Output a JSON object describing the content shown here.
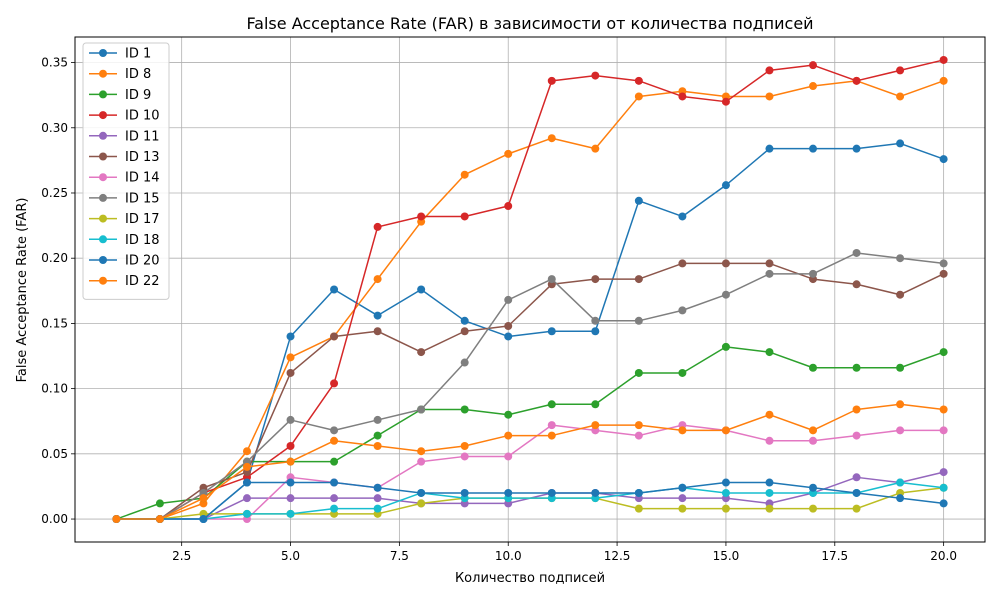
{
  "chart_data": {
    "type": "line",
    "title": "False Acceptance Rate (FAR) в зависимости от количества подписей",
    "xlabel": "Количество подписей",
    "ylabel": "False Acceptance Rate (FAR)",
    "xlim": [
      0.05,
      20.95
    ],
    "ylim": [
      -0.0176,
      0.3696
    ],
    "xticks": [
      2.5,
      5.0,
      7.5,
      10.0,
      12.5,
      15.0,
      17.5,
      20.0
    ],
    "xtick_labels": [
      "2.5",
      "5.0",
      "7.5",
      "10.0",
      "12.5",
      "15.0",
      "17.5",
      "20.0"
    ],
    "yticks": [
      0.0,
      0.05,
      0.1,
      0.15,
      0.2,
      0.25,
      0.3,
      0.35
    ],
    "ytick_labels": [
      "0.00",
      "0.05",
      "0.10",
      "0.15",
      "0.20",
      "0.25",
      "0.30",
      "0.35"
    ],
    "grid": true,
    "legend_position": "top-left",
    "x": [
      1,
      2,
      3,
      4,
      5,
      6,
      7,
      8,
      9,
      10,
      11,
      12,
      13,
      14,
      15,
      16,
      17,
      18,
      19,
      20
    ],
    "series": [
      {
        "name": "ID 1",
        "color": "#1f77b4",
        "values": [
          0,
          0,
          0,
          0.028,
          0.14,
          0.176,
          0.156,
          0.176,
          0.152,
          0.14,
          0.144,
          0.144,
          0.244,
          0.232,
          0.256,
          0.284,
          0.284,
          0.284,
          0.288,
          0.276
        ]
      },
      {
        "name": "ID 8",
        "color": "#ff7f0e",
        "values": [
          0,
          0,
          0.012,
          0.052,
          0.124,
          0.14,
          0.184,
          0.228,
          0.264,
          0.28,
          0.292,
          0.284,
          0.324,
          0.328,
          0.324,
          0.324,
          0.332,
          0.336,
          0.324,
          0.336
        ]
      },
      {
        "name": "ID 9",
        "color": "#2ca02c",
        "values": [
          0,
          0.012,
          0.016,
          0.044,
          0.044,
          0.044,
          0.064,
          0.084,
          0.084,
          0.08,
          0.088,
          0.088,
          0.112,
          0.112,
          0.132,
          0.128,
          0.116,
          0.116,
          0.116,
          0.128
        ]
      },
      {
        "name": "ID 10",
        "color": "#d62728",
        "values": [
          0,
          0,
          0.02,
          0.032,
          0.056,
          0.104,
          0.224,
          0.232,
          0.232,
          0.24,
          0.336,
          0.34,
          0.336,
          0.324,
          0.32,
          0.344,
          0.348,
          0.336,
          0.344,
          0.352
        ]
      },
      {
        "name": "ID 11",
        "color": "#9467bd",
        "values": [
          0,
          0,
          0,
          0.016,
          0.016,
          0.016,
          0.016,
          0.012,
          0.012,
          0.012,
          0.02,
          0.02,
          0.016,
          0.016,
          0.016,
          0.012,
          0.02,
          0.032,
          0.028,
          0.036
        ]
      },
      {
        "name": "ID 13",
        "color": "#8c564b",
        "values": [
          0,
          0,
          0.024,
          0.036,
          0.112,
          0.14,
          0.144,
          0.128,
          0.144,
          0.148,
          0.18,
          0.184,
          0.184,
          0.196,
          0.196,
          0.196,
          0.184,
          0.18,
          0.172,
          0.188
        ]
      },
      {
        "name": "ID 14",
        "color": "#e377c2",
        "values": [
          0,
          0,
          0,
          0,
          0.032,
          0.028,
          0.024,
          0.044,
          0.048,
          0.048,
          0.072,
          0.068,
          0.064,
          0.072,
          0.068,
          0.06,
          0.06,
          0.064,
          0.068,
          0.068
        ]
      },
      {
        "name": "ID 15",
        "color": "#7f7f7f",
        "values": [
          0,
          0,
          0.02,
          0.044,
          0.076,
          0.068,
          0.076,
          0.084,
          0.12,
          0.168,
          0.184,
          0.152,
          0.152,
          0.16,
          0.172,
          0.188,
          0.188,
          0.204,
          0.2,
          0.196
        ]
      },
      {
        "name": "ID 17",
        "color": "#bcbd22",
        "values": [
          0,
          0,
          0.004,
          0.004,
          0.004,
          0.004,
          0.004,
          0.012,
          0.016,
          0.016,
          0.016,
          0.016,
          0.008,
          0.008,
          0.008,
          0.008,
          0.008,
          0.008,
          0.02,
          0.024
        ]
      },
      {
        "name": "ID 18",
        "color": "#17becf",
        "values": [
          0,
          0,
          0,
          0.004,
          0.004,
          0.008,
          0.008,
          0.02,
          0.016,
          0.016,
          0.016,
          0.016,
          0.02,
          0.024,
          0.02,
          0.02,
          0.02,
          0.02,
          0.028,
          0.024
        ]
      },
      {
        "name": "ID 20",
        "color": "#1f77b4",
        "values": [
          0,
          0,
          0,
          0.028,
          0.028,
          0.028,
          0.024,
          0.02,
          0.02,
          0.02,
          0.02,
          0.02,
          0.02,
          0.024,
          0.028,
          0.028,
          0.024,
          0.02,
          0.016,
          0.012
        ]
      },
      {
        "name": "ID 22",
        "color": "#ff7f0e",
        "values": [
          0,
          0,
          0.016,
          0.04,
          0.044,
          0.06,
          0.056,
          0.052,
          0.056,
          0.064,
          0.064,
          0.072,
          0.072,
          0.068,
          0.068,
          0.08,
          0.068,
          0.084,
          0.088,
          0.084
        ]
      }
    ]
  }
}
